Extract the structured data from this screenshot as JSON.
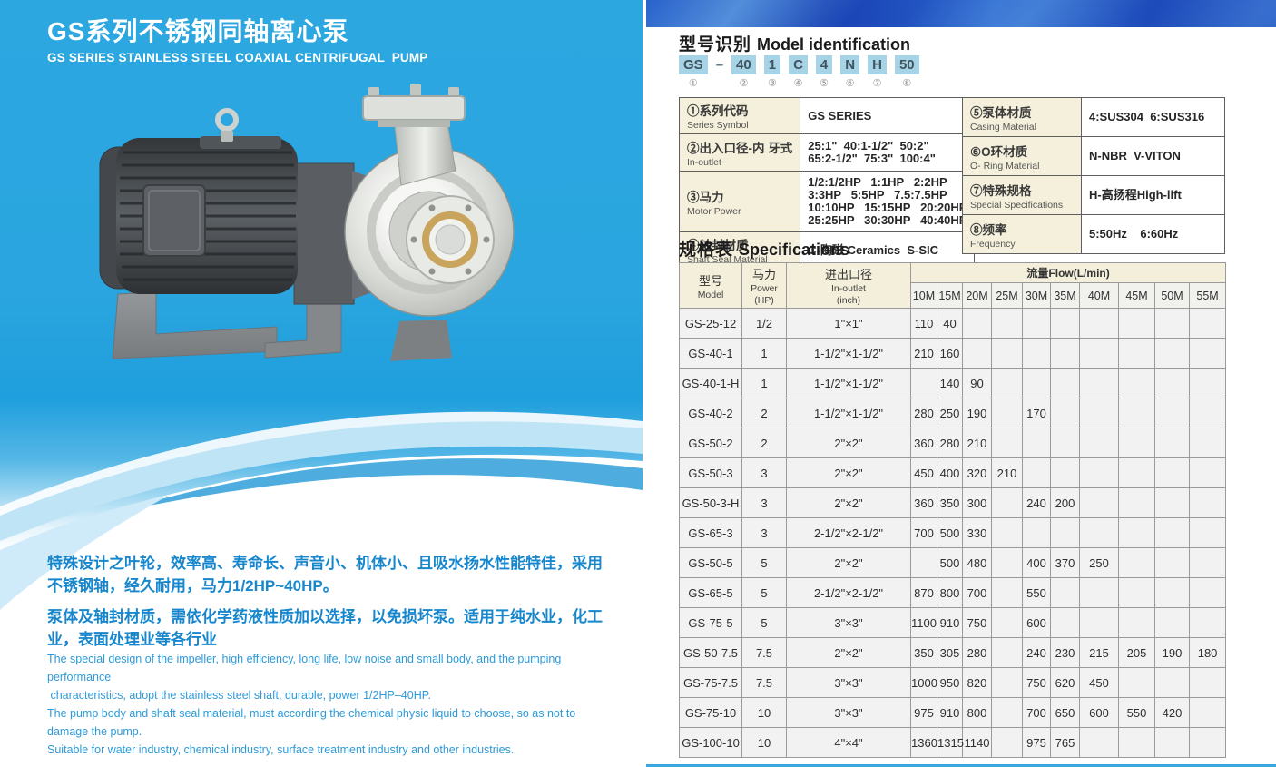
{
  "colors": {
    "left_panel_blue": "#2aa6e0",
    "top_band_blue": "#1c4cc0",
    "code_box_blue": "#a7d3e6",
    "table_label_cream": "#f5f0db",
    "desc_text_blue": "#1787cd",
    "bottom_line_blue": "#3aa9e1"
  },
  "left": {
    "title_cn": "GS系列不锈钢同轴离心泵",
    "title_en": "GS SERIES STAINLESS STEEL COAXIAL CENTRIFUGAL  PUMP",
    "pump_image": "stainless-steel-coaxial-centrifugal-pump-photo",
    "desc_cn": [
      "特殊设计之叶轮，效率高、寿命长、声音小、机体小、且吸水扬水性能特佳，采用不锈钢轴，经久耐用，马力1/2HP~40HP。",
      "泵体及轴封材质，需依化学药液性质加以选择，以免损坏泵。适用于纯水业，化工业，表面处理业等各行业"
    ],
    "desc_en": [
      "The special design of the impeller, high efficiency, long life, low noise and small body, and the pumping performance",
      " characteristics, adopt the stainless steel shaft, durable, power 1/2HP–40HP.",
      "The pump body and shaft seal material, must according the chemical physic liquid to choose, so as not to damage the pump.",
      "Suitable for water industry, chemical industry, surface treatment industry and other industries."
    ]
  },
  "model_id": {
    "heading_cn": "型号识别",
    "heading_en": "Model identification",
    "code_parts": [
      {
        "t": "GS",
        "hl": true
      },
      {
        "t": "–",
        "hl": false
      },
      {
        "t": "40",
        "hl": true
      },
      {
        "t": "1",
        "hl": true
      },
      {
        "t": "C",
        "hl": true
      },
      {
        "t": "4",
        "hl": true
      },
      {
        "t": "N",
        "hl": true
      },
      {
        "t": "H",
        "hl": true
      },
      {
        "t": "50",
        "hl": true
      }
    ],
    "circles": [
      "①",
      "②",
      "③",
      "④",
      "⑤",
      "⑥",
      "⑦",
      "⑧"
    ],
    "left_table": [
      {
        "label_cn": "①系列代码",
        "label_en": "Series Symbol",
        "value_lines": [
          "GS SERIES"
        ]
      },
      {
        "label_cn": "②出入口径-内 牙式",
        "label_en": "In-outlet",
        "value_lines": [
          "25:1\"  40:1-1/2\"  50:2\"",
          "65:2-1/2\"  75:3\"  100:4\""
        ]
      },
      {
        "label_cn": "③马力",
        "label_en": "Motor Power",
        "value_lines": [
          "1/2:1/2HP   1:1HP   2:2HP",
          "3:3HP   5:5HP   7.5:7.5HP",
          "10:10HP   15:15HP   20:20HP",
          "25:25HP   30:30HP   40:40HP"
        ]
      },
      {
        "label_cn": "④轴封材质",
        "label_en": "Shaft Seal Material",
        "value_lines": [
          "C-陶磁 Ceramics  S-SIC"
        ]
      }
    ],
    "right_table": [
      {
        "label_cn": "⑤泵体材质",
        "label_en": "Casing Material",
        "value_lines": [
          "4:SUS304  6:SUS316"
        ]
      },
      {
        "label_cn": "⑥O环材质",
        "label_en": "O- Ring Material",
        "value_lines": [
          "N-NBR  V-VITON"
        ]
      },
      {
        "label_cn": "⑦特殊规格",
        "label_en": "Special Specifications",
        "value_lines": [
          "H-高扬程High-lift"
        ]
      },
      {
        "label_cn": "⑧频率",
        "label_en": "Frequency",
        "value_lines": [
          "5:50Hz    6:60Hz"
        ]
      }
    ]
  },
  "specs": {
    "heading_cn": "规格表",
    "heading_en": "Specifications",
    "col_model_cn": "型号",
    "col_model_en": "Model",
    "col_power_cn": "马力",
    "col_power_en": "Power",
    "col_power_unit": "(HP)",
    "col_inout_cn": "进出口径",
    "col_inout_en": "In-outlet",
    "col_inout_unit": "(inch)",
    "flow_header": "流量Flow(L/min)",
    "flow_cols": [
      "10M",
      "15M",
      "20M",
      "25M",
      "30M",
      "35M",
      "40M",
      "45M",
      "50M",
      "55M"
    ],
    "rows": [
      {
        "model": "GS-25-12",
        "power": "1/2",
        "inout": "1\"×1\"",
        "flows": [
          "110",
          "40",
          "",
          "",
          "",
          "",
          "",
          "",
          "",
          ""
        ]
      },
      {
        "model": "GS-40-1",
        "power": "1",
        "inout": "1-1/2\"×1-1/2\"",
        "flows": [
          "210",
          "160",
          "",
          "",
          "",
          "",
          "",
          "",
          "",
          ""
        ]
      },
      {
        "model": "GS-40-1-H",
        "power": "1",
        "inout": "1-1/2\"×1-1/2\"",
        "flows": [
          "",
          "140",
          "90",
          "",
          "",
          "",
          "",
          "",
          "",
          ""
        ]
      },
      {
        "model": "GS-40-2",
        "power": "2",
        "inout": "1-1/2\"×1-1/2\"",
        "flows": [
          "280",
          "250",
          "190",
          "",
          "170",
          "",
          "",
          "",
          "",
          ""
        ]
      },
      {
        "model": "GS-50-2",
        "power": "2",
        "inout": "2\"×2\"",
        "flows": [
          "360",
          "280",
          "210",
          "",
          "",
          "",
          "",
          "",
          "",
          ""
        ]
      },
      {
        "model": "GS-50-3",
        "power": "3",
        "inout": "2\"×2\"",
        "flows": [
          "450",
          "400",
          "320",
          "210",
          "",
          "",
          "",
          "",
          "",
          ""
        ]
      },
      {
        "model": "GS-50-3-H",
        "power": "3",
        "inout": "2\"×2\"",
        "flows": [
          "360",
          "350",
          "300",
          "",
          "240",
          "200",
          "",
          "",
          "",
          ""
        ]
      },
      {
        "model": "GS-65-3",
        "power": "3",
        "inout": "2-1/2\"×2-1/2\"",
        "flows": [
          "700",
          "500",
          "330",
          "",
          "",
          "",
          "",
          "",
          "",
          ""
        ]
      },
      {
        "model": "GS-50-5",
        "power": "5",
        "inout": "2\"×2\"",
        "flows": [
          "",
          "500",
          "480",
          "",
          "400",
          "370",
          "250",
          "",
          "",
          ""
        ]
      },
      {
        "model": "GS-65-5",
        "power": "5",
        "inout": "2-1/2\"×2-1/2\"",
        "flows": [
          "870",
          "800",
          "700",
          "",
          "550",
          "",
          "",
          "",
          "",
          ""
        ]
      },
      {
        "model": "GS-75-5",
        "power": "5",
        "inout": "3\"×3\"",
        "flows": [
          "1100",
          "910",
          "750",
          "",
          "600",
          "",
          "",
          "",
          "",
          ""
        ]
      },
      {
        "model": "GS-50-7.5",
        "power": "7.5",
        "inout": "2\"×2\"",
        "flows": [
          "350",
          "305",
          "280",
          "",
          "240",
          "230",
          "215",
          "205",
          "190",
          "180"
        ]
      },
      {
        "model": "GS-75-7.5",
        "power": "7.5",
        "inout": "3\"×3\"",
        "flows": [
          "1000",
          "950",
          "820",
          "",
          "750",
          "620",
          "450",
          "",
          "",
          ""
        ]
      },
      {
        "model": "GS-75-10",
        "power": "10",
        "inout": "3\"×3\"",
        "flows": [
          "975",
          "910",
          "800",
          "",
          "700",
          "650",
          "600",
          "550",
          "420",
          ""
        ]
      },
      {
        "model": "GS-100-10",
        "power": "10",
        "inout": "4\"×4\"",
        "flows": [
          "1360",
          "1315",
          "1140",
          "",
          "975",
          "765",
          "",
          "",
          "",
          ""
        ]
      }
    ]
  }
}
